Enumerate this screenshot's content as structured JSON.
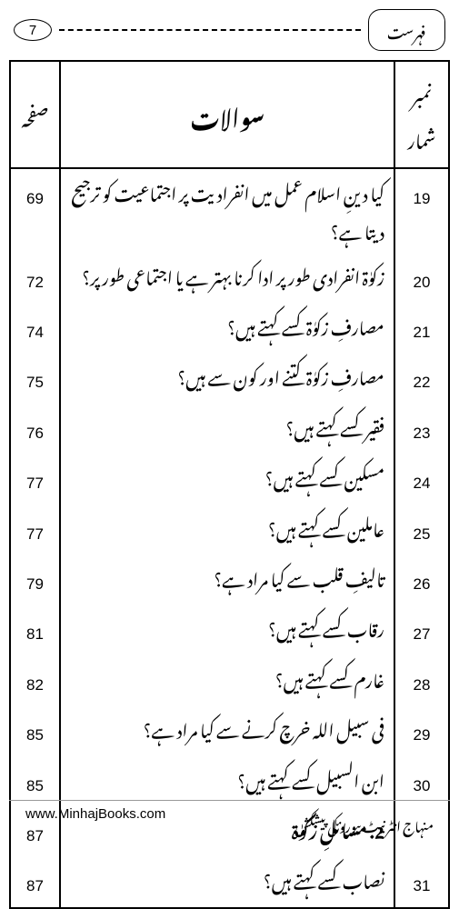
{
  "header": {
    "page_number": "7",
    "title_label": "فہرست"
  },
  "table_headers": {
    "serial": "نمبر شمار",
    "question": "سوالات",
    "page": "صفحہ"
  },
  "rows": [
    {
      "num": "19",
      "q": "کیا دینِ اسلام عمل میں انفرادیت پر اجتماعیت کو ترجیح دیتا ہے؟",
      "pg": "69"
    },
    {
      "num": "20",
      "q": "زکوٰۃ انفرادی طور پر ادا کرنا بہتر ہے یا اجتماعی طور پر؟",
      "pg": "72"
    },
    {
      "num": "21",
      "q": "مصارفِ زکوٰۃ کسے کہتے ہیں؟",
      "pg": "74"
    },
    {
      "num": "22",
      "q": "مصارفِ زکوٰۃ کتنے اور کون سے ہیں؟",
      "pg": "75"
    },
    {
      "num": "23",
      "q": "فقیر کسے کہتے ہیں؟",
      "pg": "76"
    },
    {
      "num": "24",
      "q": "مسکین کسے کہتے ہیں؟",
      "pg": "77"
    },
    {
      "num": "25",
      "q": "عاملین کسے کہتے ہیں؟",
      "pg": "77"
    },
    {
      "num": "26",
      "q": "تالیفِ قلب سے کیا مراد ہے؟",
      "pg": "79"
    },
    {
      "num": "27",
      "q": "رقاب کسے کہتے ہیں؟",
      "pg": "81"
    },
    {
      "num": "28",
      "q": "غارم کسے کہتے ہیں؟",
      "pg": "82"
    },
    {
      "num": "29",
      "q": "فی سبیل اللہ خرچ کرنے سے کیا مراد ہے؟",
      "pg": "85"
    },
    {
      "num": "30",
      "q": "ابن السبیل کسے کہتے ہیں؟",
      "pg": "85"
    }
  ],
  "section": {
    "heading": "2. مسائلِ زکوٰۃ",
    "pg": "87"
  },
  "rows2": [
    {
      "num": "31",
      "q": "نصاب کسے کہتے ہیں؟",
      "pg": "87"
    }
  ],
  "footer": {
    "url": "www.MinhajBooks.com",
    "credit": "منہاج انٹرنیٹ بیورو کی پیشکش"
  }
}
